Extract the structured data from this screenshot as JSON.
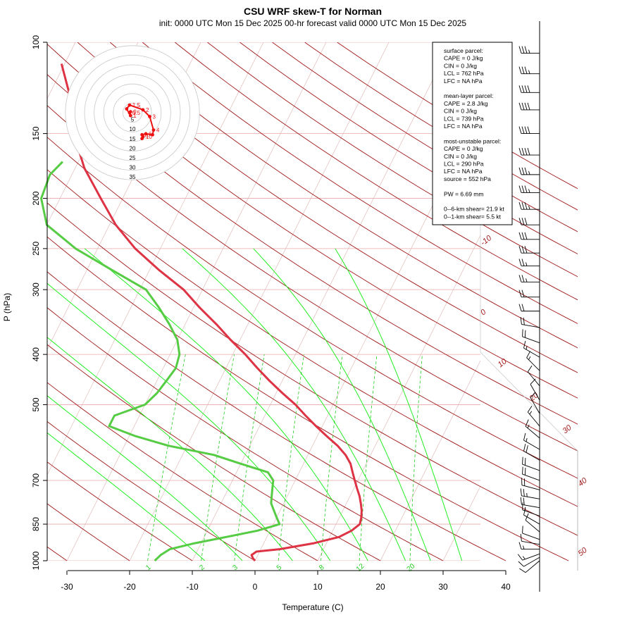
{
  "chart_data": {
    "type": "skew-t",
    "title": "CSU WRF skew-T for Norman",
    "subtitle": "init: 0000 UTC Mon 15 Dec 2025    00-hr forecast valid 0000 UTC Mon 15 Dec 2025",
    "xlabel": "Temperature (C)",
    "ylabel": "P (hPa)",
    "x_ticks": [
      "-30",
      "-20",
      "-10",
      "0",
      "10",
      "20",
      "30",
      "40"
    ],
    "x_tick_values": [
      -30,
      -20,
      -10,
      0,
      10,
      20,
      30,
      40
    ],
    "p_ticks": [
      "100",
      "150",
      "200",
      "250",
      "300",
      "400",
      "500",
      "700",
      "850",
      "1000"
    ],
    "p_tick_values": [
      100,
      150,
      200,
      250,
      300,
      400,
      500,
      700,
      850,
      1000
    ],
    "grid": true,
    "isotherm_spacing_c": 10,
    "dry_adiabat_labels": [
      "-10",
      "0",
      "10",
      "20",
      "30",
      "40",
      "50"
    ],
    "dry_adiabat_label_values": [
      -10,
      0,
      10,
      20,
      30,
      40,
      50
    ],
    "mixing_ratio_labels": [
      "1",
      "2",
      "3",
      "5",
      "8",
      "12",
      "20"
    ],
    "mixing_ratio_label_values": [
      1,
      2,
      3,
      5,
      8,
      12,
      20
    ],
    "colors": {
      "temperature": "#dd3344",
      "dewpoint": "#55cc44",
      "isobar": "#e8a8a8",
      "dry_adiabat": "#a01818",
      "moist_adiabat": "#22ee22",
      "mixing_ratio": "#22cc22",
      "isotherm": "#e0b0b0",
      "hodograph": "#ee1111"
    },
    "series": [
      {
        "name": "temperature",
        "points": [
          [
            1000,
            0
          ],
          [
            990,
            -0.5
          ],
          [
            975,
            -1
          ],
          [
            960,
            -0.5
          ],
          [
            950,
            3
          ],
          [
            925,
            8
          ],
          [
            900,
            11.5
          ],
          [
            875,
            13
          ],
          [
            850,
            13.8
          ],
          [
            825,
            13.5
          ],
          [
            800,
            13
          ],
          [
            775,
            12.3
          ],
          [
            750,
            11.5
          ],
          [
            725,
            10.5
          ],
          [
            700,
            9.5
          ],
          [
            675,
            8.5
          ],
          [
            650,
            7.5
          ],
          [
            625,
            6
          ],
          [
            600,
            4
          ],
          [
            575,
            1.5
          ],
          [
            550,
            -1
          ],
          [
            525,
            -3.5
          ],
          [
            500,
            -6
          ],
          [
            475,
            -9
          ],
          [
            450,
            -12
          ],
          [
            425,
            -15
          ],
          [
            400,
            -18
          ],
          [
            375,
            -21.5
          ],
          [
            350,
            -25
          ],
          [
            325,
            -29
          ],
          [
            300,
            -33
          ],
          [
            275,
            -38.5
          ],
          [
            250,
            -44
          ],
          [
            225,
            -49
          ],
          [
            200,
            -53.5
          ],
          [
            175,
            -58.5
          ],
          [
            150,
            -63
          ],
          [
            125,
            -67
          ],
          [
            110,
            -70.5
          ]
        ]
      },
      {
        "name": "dewpoint",
        "points": [
          [
            1000,
            -16
          ],
          [
            975,
            -15.5
          ],
          [
            950,
            -14.5
          ],
          [
            925,
            -11
          ],
          [
            900,
            -6.5
          ],
          [
            875,
            -2
          ],
          [
            850,
            1
          ],
          [
            825,
            0
          ],
          [
            800,
            -1
          ],
          [
            775,
            -2
          ],
          [
            750,
            -2.5
          ],
          [
            725,
            -3
          ],
          [
            700,
            -3.5
          ],
          [
            675,
            -5
          ],
          [
            650,
            -10
          ],
          [
            625,
            -15
          ],
          [
            600,
            -23
          ],
          [
            575,
            -29
          ],
          [
            550,
            -34
          ],
          [
            525,
            -34
          ],
          [
            500,
            -30
          ],
          [
            475,
            -29
          ],
          [
            450,
            -28.5
          ],
          [
            425,
            -28
          ],
          [
            400,
            -28.5
          ],
          [
            375,
            -30
          ],
          [
            350,
            -32.5
          ],
          [
            325,
            -35.5
          ],
          [
            300,
            -39
          ],
          [
            275,
            -46
          ],
          [
            250,
            -53.5
          ],
          [
            225,
            -60
          ],
          [
            200,
            -63
          ],
          [
            180,
            -63.5
          ],
          [
            170,
            -62.5
          ]
        ]
      }
    ],
    "hodograph": {
      "ring_labels": [
        "5",
        "10",
        "15",
        "20",
        "25",
        "30",
        "35"
      ],
      "ring_values": [
        5,
        10,
        15,
        20,
        25,
        30,
        35
      ],
      "height_labels": [
        "0",
        "0.5",
        "1",
        "1.5",
        "2",
        "3",
        "4",
        "6",
        "8",
        "10"
      ],
      "points_u_v_kt": [
        [
          -1,
          0.5
        ],
        [
          -1.5,
          0
        ],
        [
          -1,
          -1.5
        ],
        [
          -3,
          2
        ],
        [
          -1.5,
          4
        ],
        [
          5.5,
          1.5
        ],
        [
          9,
          -2
        ],
        [
          11,
          -9
        ],
        [
          10.5,
          -11.5
        ],
        [
          7,
          -11
        ],
        [
          5,
          -11.5
        ],
        [
          5.5,
          -12.5
        ],
        [
          5,
          -13.5
        ]
      ]
    },
    "wind_barbs": [
      {
        "p": 105,
        "spd": 35,
        "dir": 270
      },
      {
        "p": 115,
        "spd": 35,
        "dir": 270
      },
      {
        "p": 125,
        "spd": 40,
        "dir": 270
      },
      {
        "p": 135,
        "spd": 40,
        "dir": 270
      },
      {
        "p": 150,
        "spd": 40,
        "dir": 270
      },
      {
        "p": 165,
        "spd": 40,
        "dir": 270
      },
      {
        "p": 180,
        "spd": 35,
        "dir": 270
      },
      {
        "p": 195,
        "spd": 35,
        "dir": 270
      },
      {
        "p": 210,
        "spd": 35,
        "dir": 270
      },
      {
        "p": 225,
        "spd": 30,
        "dir": 270
      },
      {
        "p": 240,
        "spd": 30,
        "dir": 270
      },
      {
        "p": 255,
        "spd": 30,
        "dir": 270
      },
      {
        "p": 270,
        "spd": 25,
        "dir": 270
      },
      {
        "p": 290,
        "spd": 25,
        "dir": 270
      },
      {
        "p": 310,
        "spd": 20,
        "dir": 270
      },
      {
        "p": 330,
        "spd": 20,
        "dir": 270
      },
      {
        "p": 355,
        "spd": 20,
        "dir": 280
      },
      {
        "p": 380,
        "spd": 20,
        "dir": 290
      },
      {
        "p": 405,
        "spd": 15,
        "dir": 300
      },
      {
        "p": 430,
        "spd": 15,
        "dir": 315
      },
      {
        "p": 460,
        "spd": 10,
        "dir": 320
      },
      {
        "p": 490,
        "spd": 10,
        "dir": 330
      },
      {
        "p": 520,
        "spd": 10,
        "dir": 330
      },
      {
        "p": 550,
        "spd": 15,
        "dir": 320
      },
      {
        "p": 580,
        "spd": 15,
        "dir": 310
      },
      {
        "p": 610,
        "spd": 15,
        "dir": 300
      },
      {
        "p": 640,
        "spd": 20,
        "dir": 300
      },
      {
        "p": 670,
        "spd": 20,
        "dir": 290
      },
      {
        "p": 700,
        "spd": 20,
        "dir": 290
      },
      {
        "p": 730,
        "spd": 20,
        "dir": 285
      },
      {
        "p": 760,
        "spd": 25,
        "dir": 280
      },
      {
        "p": 790,
        "spd": 20,
        "dir": 280
      },
      {
        "p": 820,
        "spd": 15,
        "dir": 290
      },
      {
        "p": 850,
        "spd": 10,
        "dir": 300
      },
      {
        "p": 880,
        "spd": 10,
        "dir": 310
      },
      {
        "p": 910,
        "spd": 10,
        "dir": 290
      },
      {
        "p": 930,
        "spd": 10,
        "dir": 280
      },
      {
        "p": 950,
        "spd": 15,
        "dir": 270
      },
      {
        "p": 970,
        "spd": 15,
        "dir": 250
      },
      {
        "p": 985,
        "spd": 10,
        "dir": 240
      },
      {
        "p": 1000,
        "spd": 10,
        "dir": 230
      }
    ]
  },
  "info_box": {
    "lines": [
      "surface parcel:",
      "CAPE = 0 J/kg",
      "CIN = 0 J/kg",
      "LCL = 762 hPa",
      "LFC = NA hPa",
      "",
      "mean-layer parcel:",
      "CAPE = 2.8 J/kg",
      "CIN = 0 J/kg",
      "LCL = 739 hPa",
      "LFC = NA hPa",
      "",
      "most-unstable parcel:",
      "CAPE = 0 J/kg",
      "CIN = 0 J/kg",
      "LCL = 290 hPa",
      "LFC = NA hPa",
      "source = 552 hPa",
      "",
      "PW =  6.69 mm",
      "",
      "0--6-km shear= 21.9 kt",
      "0--1-km shear= 5.5 kt"
    ]
  }
}
